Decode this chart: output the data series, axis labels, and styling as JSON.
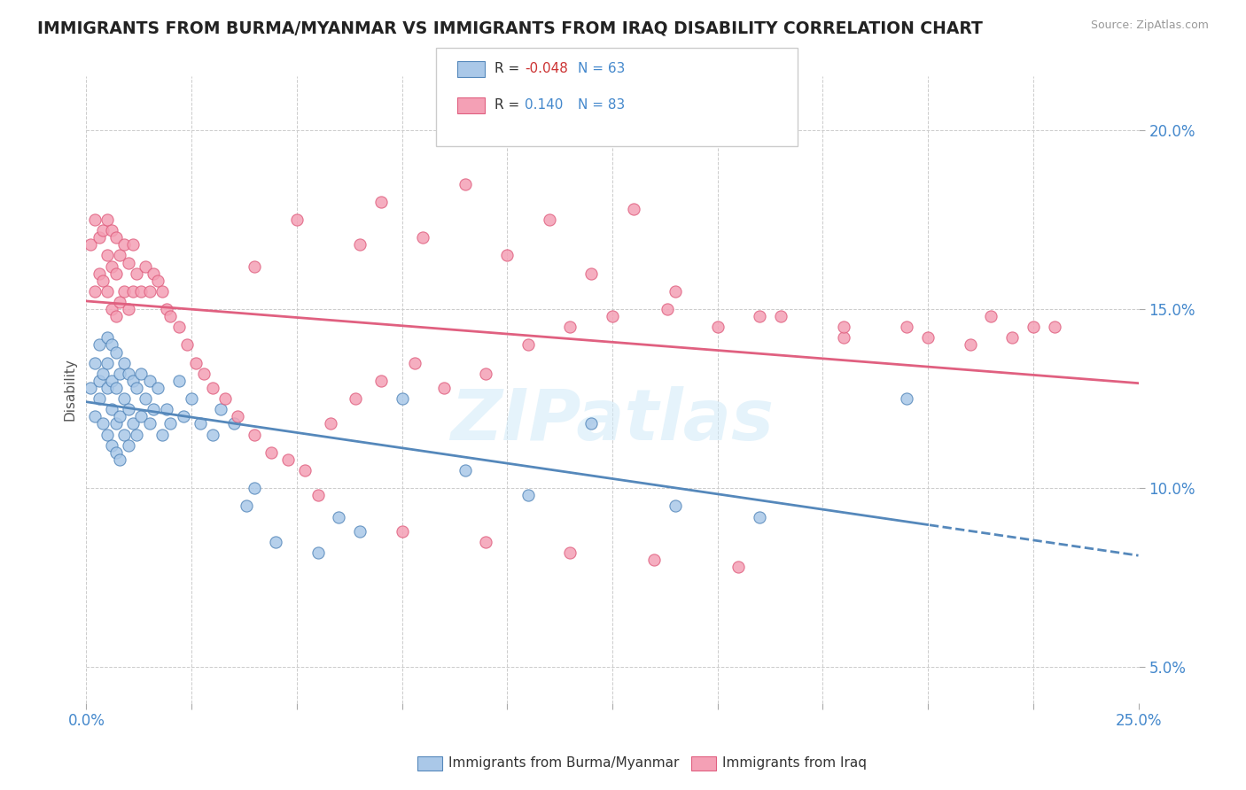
{
  "title": "IMMIGRANTS FROM BURMA/MYANMAR VS IMMIGRANTS FROM IRAQ DISABILITY CORRELATION CHART",
  "source": "Source: ZipAtlas.com",
  "ylabel": "Disability",
  "xlim": [
    0.0,
    0.25
  ],
  "ylim": [
    0.04,
    0.215
  ],
  "yticks": [
    0.05,
    0.1,
    0.15,
    0.2
  ],
  "ytick_labels": [
    "5.0%",
    "10.0%",
    "15.0%",
    "20.0%"
  ],
  "xticks": [
    0.0,
    0.025,
    0.05,
    0.075,
    0.1,
    0.125,
    0.15,
    0.175,
    0.2,
    0.225,
    0.25
  ],
  "xtick_labels_show": [
    "0.0%",
    "",
    "",
    "",
    "",
    "",
    "",
    "",
    "",
    "",
    "25.0%"
  ],
  "color_burma": "#aac8e8",
  "color_iraq": "#f4a0b5",
  "line_color_burma": "#5588bb",
  "line_color_iraq": "#e06080",
  "R_burma": -0.048,
  "N_burma": 63,
  "R_iraq": 0.14,
  "N_iraq": 83,
  "legend_label_burma": "Immigrants from Burma/Myanmar",
  "legend_label_iraq": "Immigrants from Iraq",
  "background_color": "#ffffff",
  "burma_x": [
    0.001,
    0.002,
    0.002,
    0.003,
    0.003,
    0.003,
    0.004,
    0.004,
    0.005,
    0.005,
    0.005,
    0.005,
    0.006,
    0.006,
    0.006,
    0.006,
    0.007,
    0.007,
    0.007,
    0.007,
    0.008,
    0.008,
    0.008,
    0.009,
    0.009,
    0.009,
    0.01,
    0.01,
    0.01,
    0.011,
    0.011,
    0.012,
    0.012,
    0.013,
    0.013,
    0.014,
    0.015,
    0.015,
    0.016,
    0.017,
    0.018,
    0.019,
    0.02,
    0.022,
    0.023,
    0.025,
    0.027,
    0.03,
    0.032,
    0.035,
    0.038,
    0.04,
    0.045,
    0.055,
    0.06,
    0.065,
    0.075,
    0.09,
    0.105,
    0.12,
    0.14,
    0.16,
    0.195
  ],
  "burma_y": [
    0.128,
    0.12,
    0.135,
    0.125,
    0.13,
    0.14,
    0.118,
    0.132,
    0.115,
    0.128,
    0.135,
    0.142,
    0.112,
    0.122,
    0.13,
    0.14,
    0.11,
    0.118,
    0.128,
    0.138,
    0.108,
    0.12,
    0.132,
    0.115,
    0.125,
    0.135,
    0.112,
    0.122,
    0.132,
    0.118,
    0.13,
    0.115,
    0.128,
    0.12,
    0.132,
    0.125,
    0.118,
    0.13,
    0.122,
    0.128,
    0.115,
    0.122,
    0.118,
    0.13,
    0.12,
    0.125,
    0.118,
    0.115,
    0.122,
    0.118,
    0.095,
    0.1,
    0.085,
    0.082,
    0.092,
    0.088,
    0.125,
    0.105,
    0.098,
    0.118,
    0.095,
    0.092,
    0.125
  ],
  "iraq_x": [
    0.001,
    0.002,
    0.002,
    0.003,
    0.003,
    0.004,
    0.004,
    0.005,
    0.005,
    0.005,
    0.006,
    0.006,
    0.006,
    0.007,
    0.007,
    0.007,
    0.008,
    0.008,
    0.009,
    0.009,
    0.01,
    0.01,
    0.011,
    0.011,
    0.012,
    0.013,
    0.014,
    0.015,
    0.016,
    0.017,
    0.018,
    0.019,
    0.02,
    0.022,
    0.024,
    0.026,
    0.028,
    0.03,
    0.033,
    0.036,
    0.04,
    0.044,
    0.048,
    0.052,
    0.058,
    0.064,
    0.07,
    0.078,
    0.085,
    0.095,
    0.105,
    0.115,
    0.125,
    0.138,
    0.15,
    0.165,
    0.18,
    0.195,
    0.21,
    0.22,
    0.23,
    0.05,
    0.07,
    0.09,
    0.11,
    0.13,
    0.065,
    0.08,
    0.1,
    0.12,
    0.14,
    0.16,
    0.18,
    0.2,
    0.215,
    0.225,
    0.04,
    0.055,
    0.075,
    0.095,
    0.115,
    0.135,
    0.155
  ],
  "iraq_y": [
    0.168,
    0.155,
    0.175,
    0.16,
    0.17,
    0.158,
    0.172,
    0.155,
    0.165,
    0.175,
    0.15,
    0.162,
    0.172,
    0.148,
    0.16,
    0.17,
    0.152,
    0.165,
    0.155,
    0.168,
    0.15,
    0.163,
    0.155,
    0.168,
    0.16,
    0.155,
    0.162,
    0.155,
    0.16,
    0.158,
    0.155,
    0.15,
    0.148,
    0.145,
    0.14,
    0.135,
    0.132,
    0.128,
    0.125,
    0.12,
    0.115,
    0.11,
    0.108,
    0.105,
    0.118,
    0.125,
    0.13,
    0.135,
    0.128,
    0.132,
    0.14,
    0.145,
    0.148,
    0.15,
    0.145,
    0.148,
    0.142,
    0.145,
    0.14,
    0.142,
    0.145,
    0.175,
    0.18,
    0.185,
    0.175,
    0.178,
    0.168,
    0.17,
    0.165,
    0.16,
    0.155,
    0.148,
    0.145,
    0.142,
    0.148,
    0.145,
    0.162,
    0.098,
    0.088,
    0.085,
    0.082,
    0.08,
    0.078
  ]
}
